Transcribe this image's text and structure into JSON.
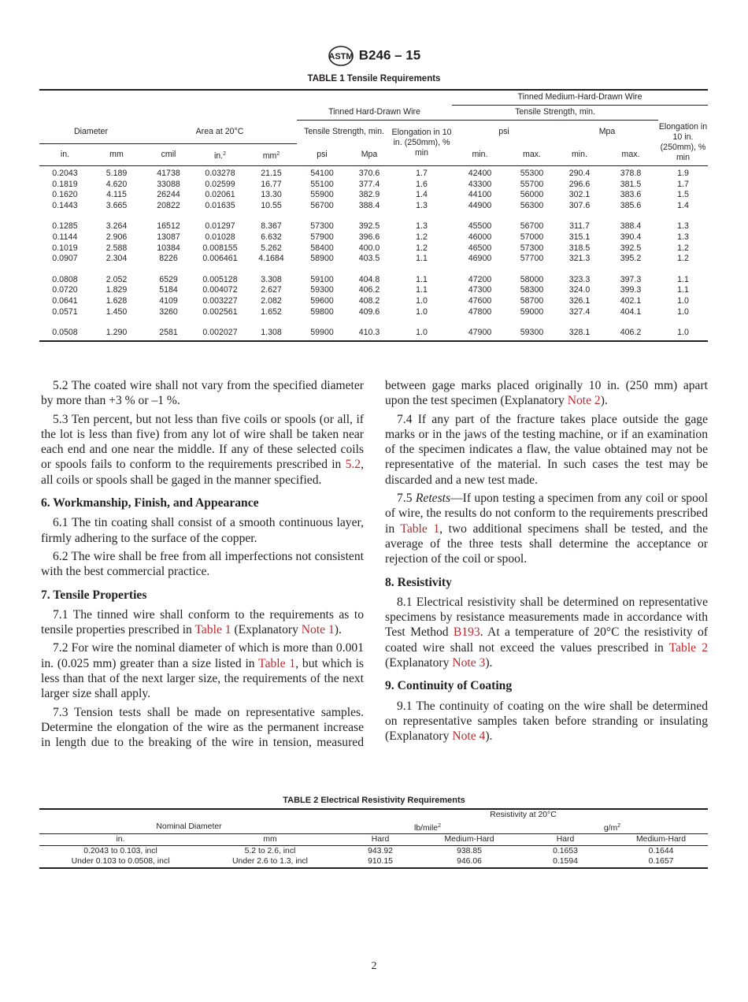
{
  "header": {
    "logo": "ASTM",
    "designation": "B246 – 15"
  },
  "table1": {
    "caption": "TABLE 1 Tensile Requirements",
    "group_medium": "Tinned Medium-Hard-Drawn Wire",
    "group_hard": "Tinned Hard-Drawn Wire",
    "tensile_min": "Tensile Strength, min.",
    "tensile_min_hard": "Tensile Strength, min.",
    "diameter": "Diameter",
    "area": "Area at 20°C",
    "elongation": "Elongation in 10 in. (250mm), % min",
    "elongation_medium": "Elongation in 10 in. (250mm), % min",
    "psi": "psi",
    "mpa": "Mpa",
    "subheaders": [
      "in.",
      "mm",
      "cmil",
      "in.",
      "mm",
      "psi",
      "Mpa",
      "min.",
      "max.",
      "min.",
      "max."
    ],
    "sup2": "2",
    "groups": [
      [
        [
          "0.2043",
          "5.189",
          "41738",
          "0.03278",
          "21.15",
          "54100",
          "370.6",
          "1.7",
          "42400",
          "55300",
          "290.4",
          "378.8",
          "1.9"
        ],
        [
          "0.1819",
          "4.620",
          "33088",
          "0.02599",
          "16.77",
          "55100",
          "377.4",
          "1.6",
          "43300",
          "55700",
          "296.6",
          "381.5",
          "1.7"
        ],
        [
          "0.1620",
          "4.115",
          "26244",
          "0.02061",
          "13.30",
          "55900",
          "382.9",
          "1.4",
          "44100",
          "56000",
          "302.1",
          "383.6",
          "1.5"
        ],
        [
          "0.1443",
          "3.665",
          "20822",
          "0.01635",
          "10.55",
          "56700",
          "388.4",
          "1.3",
          "44900",
          "56300",
          "307.6",
          "385.6",
          "1.4"
        ]
      ],
      [
        [
          "0.1285",
          "3.264",
          "16512",
          "0.01297",
          "8.367",
          "57300",
          "392.5",
          "1.3",
          "45500",
          "56700",
          "311.7",
          "388.4",
          "1.3"
        ],
        [
          "0.1144",
          "2.906",
          "13087",
          "0.01028",
          "6.632",
          "57900",
          "396.6",
          "1.2",
          "46000",
          "57000",
          "315.1",
          "390.4",
          "1.3"
        ],
        [
          "0.1019",
          "2.588",
          "10384",
          "0.008155",
          "5.262",
          "58400",
          "400.0",
          "1.2",
          "46500",
          "57300",
          "318.5",
          "392.5",
          "1.2"
        ],
        [
          "0.0907",
          "2.304",
          "8226",
          "0.006461",
          "4.1684",
          "58900",
          "403.5",
          "1.1",
          "46900",
          "57700",
          "321.3",
          "395.2",
          "1.2"
        ]
      ],
      [
        [
          "0.0808",
          "2.052",
          "6529",
          "0.005128",
          "3.308",
          "59100",
          "404.8",
          "1.1",
          "47200",
          "58000",
          "323.3",
          "397.3",
          "1.1"
        ],
        [
          "0.0720",
          "1.829",
          "5184",
          "0.004072",
          "2.627",
          "59300",
          "406.2",
          "1.1",
          "47300",
          "58300",
          "324.0",
          "399.3",
          "1.1"
        ],
        [
          "0.0641",
          "1.628",
          "4109",
          "0.003227",
          "2.082",
          "59600",
          "408.2",
          "1.0",
          "47600",
          "58700",
          "326.1",
          "402.1",
          "1.0"
        ],
        [
          "0.0571",
          "1.450",
          "3260",
          "0.002561",
          "1.652",
          "59800",
          "409.6",
          "1.0",
          "47800",
          "59000",
          "327.4",
          "404.1",
          "1.0"
        ]
      ],
      [
        [
          "0.0508",
          "1.290",
          "2581",
          "0.002027",
          "1.308",
          "59900",
          "410.3",
          "1.0",
          "47900",
          "59300",
          "328.1",
          "406.2",
          "1.0"
        ]
      ]
    ]
  },
  "left_column": [
    {
      "type": "p",
      "segs": [
        {
          "t": "5.2 The coated wire shall not vary from the specified diameter by more than +3 % or –1 %."
        }
      ]
    },
    {
      "type": "p",
      "segs": [
        {
          "t": "5.3 Ten percent, but not less than five coils or spools (or all, if the lot is less than five) from any lot of wire shall be taken near each end and one near the middle. If any of these selected coils or spools fails to conform to the requirements prescribed in "
        },
        {
          "t": "5.2",
          "link": true
        },
        {
          "t": ", all coils or spools shall be gaged in the manner specified."
        }
      ]
    },
    {
      "type": "h",
      "segs": [
        {
          "t": "6. Workmanship, Finish, and Appearance"
        }
      ]
    },
    {
      "type": "p",
      "segs": [
        {
          "t": "6.1 The tin coating shall consist of a smooth continuous layer, firmly adhering to the surface of the copper."
        }
      ]
    },
    {
      "type": "p",
      "segs": [
        {
          "t": "6.2 The wire shall be free from all imperfections not consistent with the best commercial practice."
        }
      ]
    },
    {
      "type": "h",
      "segs": [
        {
          "t": "7. Tensile Properties"
        }
      ]
    },
    {
      "type": "p",
      "segs": [
        {
          "t": "7.1 The tinned wire shall conform to the requirements as to tensile properties prescribed in "
        },
        {
          "t": "Table 1",
          "link": true
        },
        {
          "t": " (Explanatory "
        },
        {
          "t": "Note 1",
          "link": true
        },
        {
          "t": ")."
        }
      ]
    },
    {
      "type": "p",
      "segs": [
        {
          "t": "7.2 For wire the nominal diameter of which is more than 0.001 in. (0.025 mm) greater than a size listed in "
        },
        {
          "t": "Table 1",
          "link": true
        },
        {
          "t": ", but which is less than that of the next larger size, the requirements of the next larger size shall apply."
        }
      ]
    },
    {
      "type": "p",
      "last": true,
      "segs": [
        {
          "t": "7.3 Tension tests shall be made on representative samples. Determine the elongation of the wire as the permanent increase in length due to the breaking of the wire in tension, measured"
        }
      ]
    }
  ],
  "right_column": [
    {
      "type": "p",
      "cont": true,
      "segs": [
        {
          "t": "between gage marks placed originally 10 in. (250 mm) apart upon the test specimen (Explanatory "
        },
        {
          "t": "Note 2",
          "link": true
        },
        {
          "t": ")."
        }
      ]
    },
    {
      "type": "p",
      "segs": [
        {
          "t": "7.4 If any part of the fracture takes place outside the gage marks or in the jaws of the testing machine, or if an examination of the specimen indicates a flaw, the value obtained may not be representative of the material. In such cases the test may be discarded and a new test made."
        }
      ]
    },
    {
      "type": "p",
      "segs": [
        {
          "t": "7.5 "
        },
        {
          "t": "Retests",
          "em": true
        },
        {
          "t": "—If upon testing a specimen from any coil or spool of wire, the results do not conform to the requirements prescribed in "
        },
        {
          "t": "Table 1",
          "link": true
        },
        {
          "t": ", two additional specimens shall be tested, and the average of the three tests shall determine the acceptance or rejection of the coil or spool."
        }
      ]
    },
    {
      "type": "h",
      "segs": [
        {
          "t": "8. Resistivity"
        }
      ]
    },
    {
      "type": "p",
      "segs": [
        {
          "t": "8.1 Electrical resistivity shall be determined on representative specimens by resistance measurements made in accordance with Test Method "
        },
        {
          "t": "B193",
          "link": true
        },
        {
          "t": ". At a temperature of 20°C the resistivity of coated wire shall not exceed the values prescribed in "
        },
        {
          "t": "Table 2",
          "link": true
        },
        {
          "t": " (Explanatory "
        },
        {
          "t": "Note 3",
          "link": true
        },
        {
          "t": ")."
        }
      ]
    },
    {
      "type": "h",
      "segs": [
        {
          "t": "9. Continuity of Coating"
        }
      ]
    },
    {
      "type": "p",
      "segs": [
        {
          "t": "9.1 The continuity of coating on the wire shall be determined on representative samples taken before stranding or insulating (Explanatory "
        },
        {
          "t": "Note 4",
          "link": true
        },
        {
          "t": ")."
        }
      ]
    }
  ],
  "table2": {
    "caption": "TABLE 2 Electrical Resistivity Requirements",
    "resistivity": "Resistivity at 20°C",
    "nominal_diameter": "Nominal Diameter",
    "lb_mile": "lb/mile",
    "g_m": "g/m",
    "sup2": "2",
    "subheaders": [
      "in.",
      "mm",
      "Hard",
      "Medium-Hard",
      "Hard",
      "Medium-Hard"
    ],
    "rows": [
      [
        "0.2043 to 0.103, incl",
        "5.2 to 2.6, incl",
        "943.92",
        "938.85",
        "0.1653",
        "0.1644"
      ],
      [
        "Under 0.103 to 0.0508, incl",
        "Under 2.6 to 1.3, incl",
        "910.15",
        "946.06",
        "0.1594",
        "0.1657"
      ]
    ]
  },
  "page_number": "2",
  "colors": {
    "link": "#c0272d",
    "text": "#231f20"
  }
}
